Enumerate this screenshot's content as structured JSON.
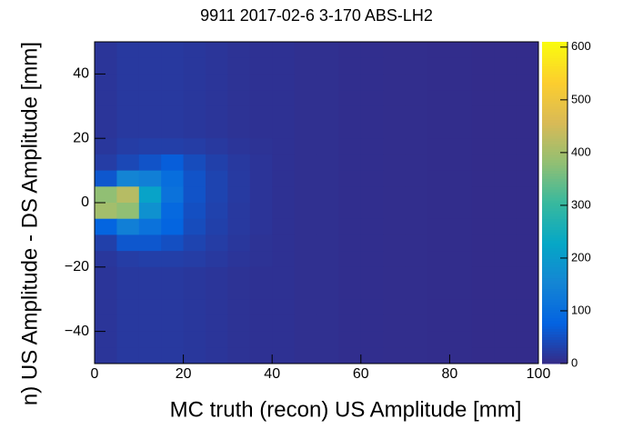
{
  "chart_data": {
    "type": "heatmap",
    "title": "9911 2017-02-6 3-170 ABS-LH2",
    "x_label": "MC truth (recon) US Amplitude [mm]",
    "y_label": "n) US Amplitude - DS Amplitude [mm]",
    "x_edges": [
      0,
      5,
      10,
      15,
      20,
      25,
      30,
      35,
      40,
      45,
      50,
      55,
      60,
      65,
      70,
      75,
      80,
      85,
      90,
      95,
      100
    ],
    "y_edges": [
      50,
      45,
      40,
      35,
      30,
      25,
      20,
      15,
      10,
      5,
      0,
      -5,
      -10,
      -15,
      -20,
      -25,
      -30,
      -35,
      -40,
      -45,
      -50
    ],
    "z": [
      [
        15,
        20,
        20,
        20,
        18,
        15,
        12,
        10,
        10,
        8,
        8,
        6,
        6,
        5,
        5,
        4,
        4,
        3,
        3,
        3
      ],
      [
        15,
        20,
        20,
        20,
        18,
        15,
        12,
        10,
        10,
        8,
        8,
        6,
        6,
        5,
        5,
        4,
        4,
        3,
        3,
        3
      ],
      [
        15,
        20,
        20,
        20,
        18,
        15,
        12,
        10,
        10,
        8,
        8,
        6,
        6,
        5,
        5,
        4,
        4,
        3,
        3,
        3
      ],
      [
        15,
        20,
        20,
        20,
        18,
        15,
        12,
        10,
        10,
        8,
        8,
        6,
        6,
        5,
        5,
        4,
        4,
        3,
        3,
        3
      ],
      [
        15,
        20,
        20,
        20,
        18,
        15,
        12,
        10,
        10,
        8,
        8,
        6,
        6,
        5,
        5,
        4,
        4,
        3,
        3,
        3
      ],
      [
        15,
        20,
        20,
        20,
        18,
        15,
        12,
        10,
        10,
        8,
        8,
        6,
        6,
        5,
        5,
        4,
        4,
        3,
        3,
        3
      ],
      [
        18,
        25,
        28,
        28,
        25,
        20,
        15,
        12,
        10,
        8,
        8,
        6,
        6,
        5,
        5,
        4,
        4,
        3,
        3,
        3
      ],
      [
        25,
        40,
        55,
        70,
        45,
        30,
        20,
        14,
        10,
        8,
        8,
        6,
        6,
        5,
        5,
        4,
        4,
        3,
        3,
        3
      ],
      [
        60,
        150,
        140,
        100,
        55,
        35,
        22,
        14,
        10,
        8,
        8,
        6,
        6,
        5,
        5,
        4,
        4,
        3,
        3,
        3
      ],
      [
        380,
        420,
        220,
        110,
        55,
        35,
        22,
        14,
        10,
        8,
        8,
        6,
        6,
        5,
        5,
        4,
        4,
        3,
        3,
        3
      ],
      [
        400,
        380,
        180,
        90,
        50,
        32,
        20,
        14,
        10,
        8,
        8,
        6,
        6,
        5,
        5,
        4,
        4,
        3,
        3,
        3
      ],
      [
        80,
        140,
        110,
        80,
        45,
        30,
        20,
        14,
        10,
        8,
        8,
        6,
        6,
        5,
        5,
        4,
        4,
        3,
        3,
        3
      ],
      [
        30,
        60,
        60,
        50,
        35,
        25,
        18,
        12,
        10,
        8,
        8,
        6,
        6,
        5,
        5,
        4,
        4,
        3,
        3,
        3
      ],
      [
        18,
        25,
        28,
        28,
        25,
        20,
        15,
        12,
        10,
        8,
        8,
        6,
        6,
        5,
        5,
        4,
        4,
        3,
        3,
        3
      ],
      [
        15,
        20,
        20,
        20,
        18,
        15,
        12,
        10,
        10,
        8,
        8,
        6,
        6,
        5,
        5,
        4,
        4,
        3,
        3,
        3
      ],
      [
        15,
        20,
        20,
        20,
        18,
        15,
        12,
        10,
        10,
        8,
        8,
        6,
        6,
        5,
        5,
        4,
        4,
        3,
        3,
        3
      ],
      [
        15,
        20,
        20,
        20,
        18,
        15,
        12,
        10,
        10,
        8,
        8,
        6,
        6,
        5,
        5,
        4,
        4,
        3,
        3,
        3
      ],
      [
        15,
        20,
        20,
        20,
        18,
        15,
        12,
        10,
        10,
        8,
        8,
        6,
        6,
        5,
        5,
        4,
        4,
        3,
        3,
        3
      ],
      [
        15,
        20,
        20,
        20,
        18,
        15,
        12,
        10,
        10,
        8,
        8,
        6,
        6,
        5,
        5,
        4,
        4,
        3,
        3,
        3
      ],
      [
        15,
        20,
        20,
        20,
        18,
        15,
        12,
        10,
        10,
        8,
        8,
        6,
        6,
        5,
        5,
        4,
        4,
        3,
        3,
        3
      ]
    ],
    "xlim": [
      0,
      100
    ],
    "xticks": [
      0,
      20,
      40,
      60,
      80,
      100
    ],
    "ylim": [
      -50,
      50
    ],
    "yticks": [
      {
        "value": -40,
        "label": "−40"
      },
      {
        "value": -20,
        "label": "−20"
      },
      0,
      20,
      40
    ],
    "zlim": [
      0,
      610
    ],
    "zticks": [
      0,
      100,
      200,
      300,
      400,
      500,
      600
    ],
    "palette": [
      "#352a87",
      "#0363e1",
      "#1485d4",
      "#06a7c6",
      "#38b99e",
      "#92bf73",
      "#d9ba56",
      "#fcce2e",
      "#f9fb0e"
    ]
  }
}
